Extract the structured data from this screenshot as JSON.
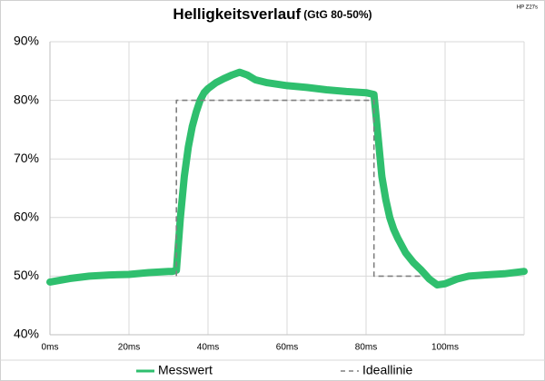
{
  "chart_data": {
    "type": "line",
    "title": "Helligkeitsverlauf",
    "subtitle": "(GtG 80-50%)",
    "annotation": "HP Z27s",
    "xlim": [
      0,
      120
    ],
    "xticks": [
      {
        "value": 0,
        "label": "0ms"
      },
      {
        "value": 20,
        "label": "20ms"
      },
      {
        "value": 40,
        "label": "40ms"
      },
      {
        "value": 60,
        "label": "60ms"
      },
      {
        "value": 80,
        "label": "80ms"
      },
      {
        "value": 100,
        "label": "100ms"
      }
    ],
    "ylim": [
      40,
      90
    ],
    "yticks": [
      {
        "value": 40,
        "label": "40%"
      },
      {
        "value": 50,
        "label": "50%"
      },
      {
        "value": 60,
        "label": "60%"
      },
      {
        "value": 70,
        "label": "70%"
      },
      {
        "value": 80,
        "label": "80%"
      },
      {
        "value": 90,
        "label": "90%"
      }
    ],
    "grid": true,
    "legend": "bottom",
    "series": [
      {
        "name": "Messwert",
        "color": "#2fbf6e",
        "dashed": false,
        "x": [
          0,
          5,
          10,
          15,
          20,
          25,
          30,
          31,
          32,
          33,
          34,
          35,
          36,
          37,
          38,
          39,
          40,
          42,
          44,
          46,
          48,
          50,
          52,
          55,
          60,
          65,
          70,
          75,
          80,
          82,
          83,
          84,
          85,
          86,
          87,
          88,
          90,
          92,
          94,
          96,
          98,
          100,
          103,
          106,
          110,
          115,
          120
        ],
        "values": [
          49,
          49.6,
          50,
          50.2,
          50.3,
          50.6,
          50.8,
          50.8,
          51,
          60,
          67,
          72,
          75.5,
          78,
          80,
          81.3,
          82,
          83,
          83.7,
          84.3,
          84.8,
          84.3,
          83.5,
          83,
          82.5,
          82.2,
          81.8,
          81.5,
          81.3,
          81,
          74,
          67,
          63,
          60,
          58,
          56.5,
          54,
          52.3,
          51,
          49.5,
          48.5,
          48.7,
          49.5,
          50,
          50.2,
          50.4,
          50.8
        ]
      },
      {
        "name": "Ideallinie",
        "color": "#808080",
        "dashed": true,
        "x": [
          32,
          32,
          82,
          82,
          94
        ],
        "values": [
          50,
          80,
          80,
          50,
          50
        ]
      }
    ]
  }
}
